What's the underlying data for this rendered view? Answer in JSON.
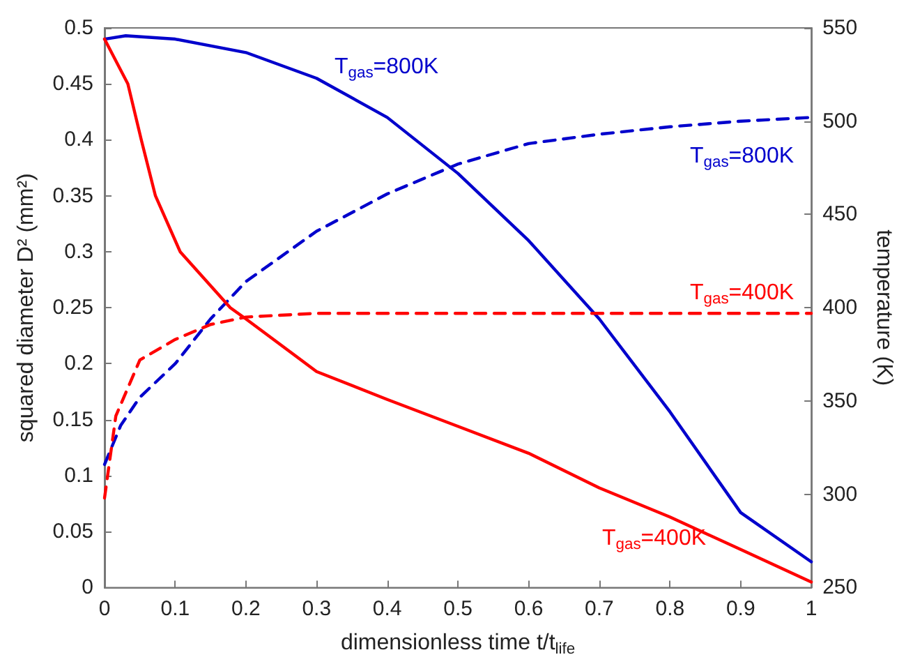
{
  "chart_data": {
    "type": "line",
    "xlabel": "dimensionless time t/t$_{life}$",
    "ylabel": "squared diameter D² (mm²)",
    "y2label": "temperature (K)",
    "xlim": [
      0,
      1
    ],
    "xticks": [
      0,
      0.1,
      0.2,
      0.3,
      0.4,
      0.5,
      0.6,
      0.7,
      0.8,
      0.9,
      1
    ],
    "ylim": [
      0,
      0.5
    ],
    "yticks": [
      0,
      0.05,
      0.1,
      0.15,
      0.2,
      0.25,
      0.3,
      0.35,
      0.4,
      0.45,
      0.5
    ],
    "y2lim": [
      250,
      550
    ],
    "y2ticks": [
      250,
      300,
      350,
      400,
      450,
      500,
      550
    ],
    "grid": false,
    "marker": "none",
    "series": [
      {
        "color": "#0000cc",
        "line_style": "solid",
        "x": [
          0,
          0.03,
          0.1,
          0.2,
          0.3,
          0.4,
          0.5,
          0.6,
          0.7,
          0.8,
          0.9,
          1
        ],
        "values": [
          0.49,
          0.493,
          0.49,
          0.478,
          0.455,
          0.42,
          0.37,
          0.31,
          0.24,
          0.157,
          0.067,
          0.023
        ]
      },
      {
        "color": "#0000cc",
        "line_style": "dashed",
        "axis": "y2",
        "x": [
          0,
          0.023,
          0.05,
          0.1,
          0.15,
          0.2,
          0.3,
          0.4,
          0.5,
          0.6,
          0.7,
          0.8,
          0.9,
          1
        ],
        "values": [
          316,
          337,
          352,
          370,
          394,
          414,
          441,
          461,
          477,
          488,
          493,
          497,
          500,
          502
        ]
      },
      {
        "color": "#ff0000",
        "line_style": "dashed",
        "axis": "y2",
        "x": [
          0,
          0.016,
          0.05,
          0.1,
          0.15,
          0.2,
          0.3,
          0.5,
          0.7,
          1
        ],
        "values": [
          298,
          342,
          372,
          383,
          391,
          395,
          397,
          397,
          397,
          397
        ]
      },
      {
        "color": "#ff0000",
        "line_style": "solid",
        "x": [
          0,
          0.033,
          0.052,
          0.072,
          0.107,
          0.178,
          0.2,
          0.3,
          0.4,
          0.5,
          0.6,
          0.7,
          0.8,
          0.9,
          1
        ],
        "values": [
          0.49,
          0.45,
          0.4,
          0.35,
          0.3,
          0.25,
          0.24,
          0.193,
          0.168,
          0.144,
          0.12,
          0.089,
          0.063,
          0.034,
          0.005
        ]
      }
    ],
    "annotations": [
      "T$_{gas}$=800K",
      "T$_{gas}$=800K",
      "T$_{gas}$=400K",
      "T$_{gas}$=400K"
    ]
  }
}
